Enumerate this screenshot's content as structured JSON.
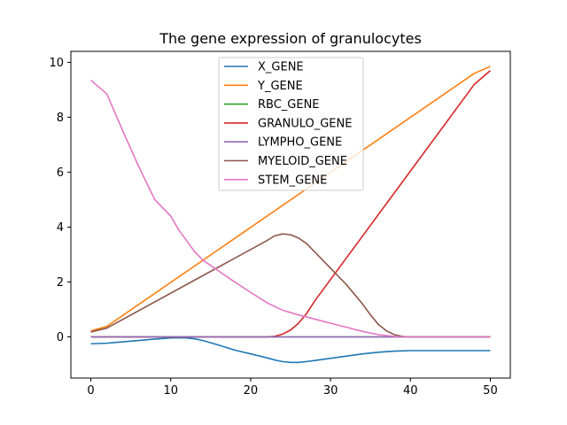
{
  "chart_data": {
    "type": "line",
    "title": "The gene expression of granulocytes",
    "xlabel": "",
    "ylabel": "",
    "xlim": [
      -2.5,
      52.5
    ],
    "ylim": [
      -1.5,
      10.4
    ],
    "xticks": [
      0,
      10,
      20,
      30,
      40,
      50
    ],
    "yticks": [
      0,
      2,
      4,
      6,
      8,
      10
    ],
    "grid": false,
    "legend": "upper-center",
    "series": [
      {
        "name": "X_GENE",
        "color": "#1f77b4",
        "x": [
          0,
          2,
          4,
          6,
          8,
          10,
          11,
          12,
          13,
          14,
          16,
          18,
          20,
          22,
          23,
          24,
          25,
          26,
          27,
          28,
          30,
          32,
          34,
          36,
          38,
          40,
          42,
          44,
          46,
          48,
          50
        ],
        "y": [
          -0.25,
          -0.23,
          -0.18,
          -0.13,
          -0.08,
          -0.04,
          -0.03,
          -0.04,
          -0.07,
          -0.13,
          -0.3,
          -0.48,
          -0.62,
          -0.76,
          -0.84,
          -0.9,
          -0.93,
          -0.93,
          -0.9,
          -0.86,
          -0.78,
          -0.7,
          -0.62,
          -0.56,
          -0.52,
          -0.5,
          -0.5,
          -0.5,
          -0.5,
          -0.5,
          -0.5
        ]
      },
      {
        "name": "Y_GENE",
        "color": "#ff7f0e",
        "x": [
          0,
          2,
          48,
          50
        ],
        "y": [
          0.22,
          0.38,
          9.6,
          9.85
        ]
      },
      {
        "name": "RBC_GENE",
        "color": "#2ca02c",
        "x": [
          0,
          50
        ],
        "y": [
          0,
          0
        ]
      },
      {
        "name": "GRANULO_GENE",
        "color": "#d62728",
        "x": [
          0,
          22,
          23,
          24,
          25,
          26,
          27,
          28,
          48,
          50
        ],
        "y": [
          0,
          0,
          0.02,
          0.1,
          0.25,
          0.5,
          0.85,
          1.3,
          9.2,
          9.7
        ],
        "mode": "linear"
      },
      {
        "name": "LYMPHO_GENE",
        "color": "#9467bd",
        "x": [
          0,
          50
        ],
        "y": [
          0,
          0
        ]
      },
      {
        "name": "MYELOID_GENE",
        "color": "#8c564b",
        "x": [
          0,
          2,
          22,
          23,
          24,
          25,
          26,
          27,
          28,
          30,
          32,
          34,
          35,
          36,
          37,
          38,
          39,
          40,
          50
        ],
        "y": [
          0.18,
          0.32,
          3.5,
          3.68,
          3.75,
          3.72,
          3.6,
          3.4,
          3.1,
          2.5,
          1.9,
          1.2,
          0.8,
          0.45,
          0.22,
          0.08,
          0.02,
          0.0,
          0.0
        ],
        "mode": "linear"
      },
      {
        "name": "STEM_GENE",
        "color": "#e377c2",
        "x": [
          0,
          2,
          4,
          6,
          8,
          10,
          11,
          12,
          13,
          14,
          16,
          18,
          20,
          22,
          24,
          26,
          28,
          30,
          32,
          34,
          36,
          38,
          40,
          50
        ],
        "y": [
          9.35,
          8.85,
          7.5,
          6.2,
          5.0,
          4.4,
          3.9,
          3.5,
          3.1,
          2.8,
          2.4,
          2.0,
          1.62,
          1.25,
          0.97,
          0.8,
          0.65,
          0.5,
          0.35,
          0.2,
          0.08,
          0.02,
          0.0,
          0.0
        ],
        "mode": "linear"
      }
    ]
  }
}
